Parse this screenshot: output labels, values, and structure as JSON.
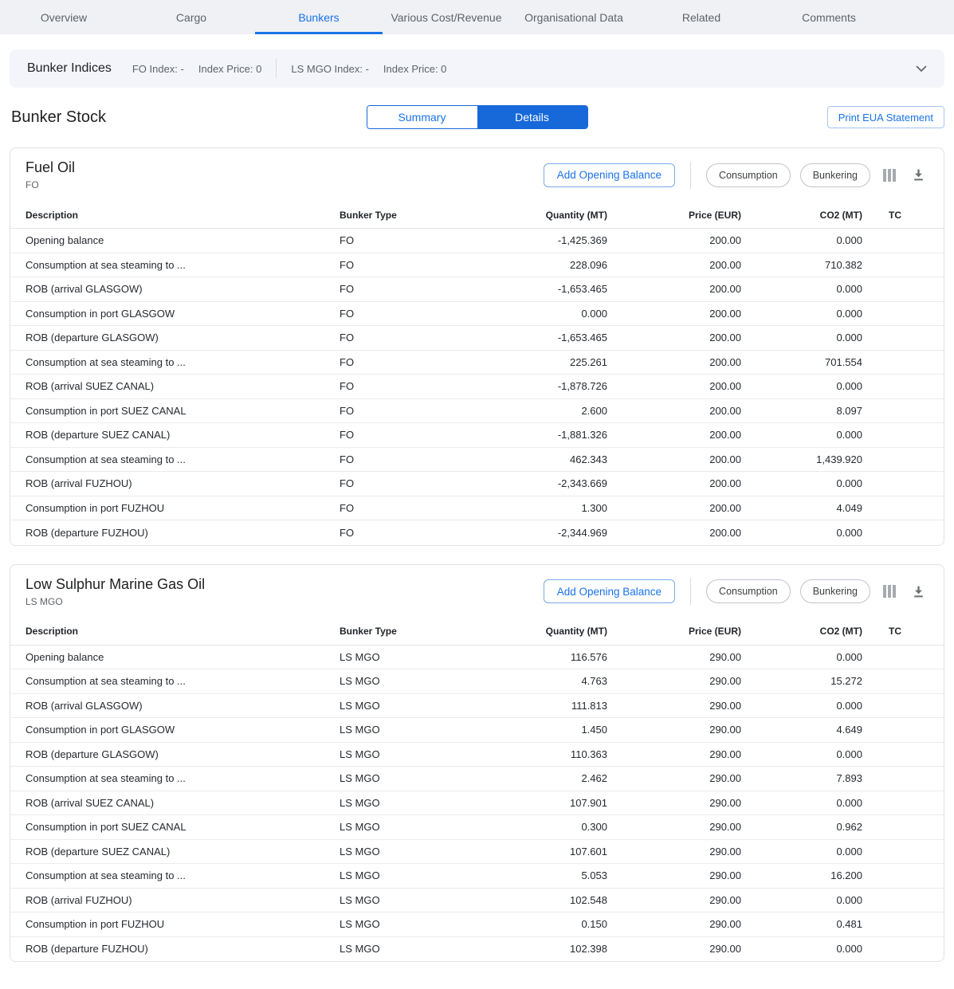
{
  "colors": {
    "accent": "#1a73e8",
    "accent_fill": "#1768d9",
    "tabbar_bg": "#eff1f4",
    "indices_bg": "#f3f5fa"
  },
  "tabs": {
    "items": [
      {
        "label": "Overview",
        "active": false
      },
      {
        "label": "Cargo",
        "active": false
      },
      {
        "label": "Bunkers",
        "active": true
      },
      {
        "label": "Various Cost/Revenue",
        "active": false
      },
      {
        "label": "Organisational Data",
        "active": false
      },
      {
        "label": "Related",
        "active": false
      },
      {
        "label": "Comments",
        "active": false
      }
    ]
  },
  "bunker_indices": {
    "title": "Bunker Indices",
    "fo_index": "FO Index: -",
    "fo_index_price": "Index Price: 0",
    "ls_mgo_index": "LS MGO Index: -",
    "ls_mgo_index_price": "Index Price: 0"
  },
  "bunker_stock": {
    "title": "Bunker Stock",
    "summary_label": "Summary",
    "details_label": "Details",
    "active_view": "Details",
    "print_eua_label": "Print EUA Statement"
  },
  "card_actions": {
    "add_opening_balance": "Add Opening Balance",
    "consumption": "Consumption",
    "bunkering": "Bunkering"
  },
  "table": {
    "columns": [
      {
        "label": "Description",
        "key": "description",
        "align": "left"
      },
      {
        "label": "Bunker Type",
        "key": "bunker_type",
        "align": "left"
      },
      {
        "label": "Quantity (MT)",
        "key": "quantity",
        "align": "right"
      },
      {
        "label": "Price (EUR)",
        "key": "price",
        "align": "right"
      },
      {
        "label": "CO2 (MT)",
        "key": "co2",
        "align": "right"
      },
      {
        "label": "TC",
        "key": "tc",
        "align": "left"
      }
    ]
  },
  "cards": [
    {
      "title": "Fuel Oil",
      "subtitle": "FO",
      "rows": [
        {
          "description": "Opening balance",
          "bunker_type": "FO",
          "quantity": "-1,425.369",
          "price": "200.00",
          "co2": "0.000",
          "tc": ""
        },
        {
          "description": "Consumption at sea steaming to ...",
          "bunker_type": "FO",
          "quantity": "228.096",
          "price": "200.00",
          "co2": "710.382",
          "tc": ""
        },
        {
          "description": "ROB (arrival GLASGOW)",
          "bunker_type": "FO",
          "quantity": "-1,653.465",
          "price": "200.00",
          "co2": "0.000",
          "tc": ""
        },
        {
          "description": "Consumption in port GLASGOW",
          "bunker_type": "FO",
          "quantity": "0.000",
          "price": "200.00",
          "co2": "0.000",
          "tc": ""
        },
        {
          "description": "ROB (departure GLASGOW)",
          "bunker_type": "FO",
          "quantity": "-1,653.465",
          "price": "200.00",
          "co2": "0.000",
          "tc": ""
        },
        {
          "description": "Consumption at sea steaming to ...",
          "bunker_type": "FO",
          "quantity": "225.261",
          "price": "200.00",
          "co2": "701.554",
          "tc": ""
        },
        {
          "description": "ROB (arrival SUEZ CANAL)",
          "bunker_type": "FO",
          "quantity": "-1,878.726",
          "price": "200.00",
          "co2": "0.000",
          "tc": ""
        },
        {
          "description": "Consumption in port SUEZ CANAL",
          "bunker_type": "FO",
          "quantity": "2.600",
          "price": "200.00",
          "co2": "8.097",
          "tc": ""
        },
        {
          "description": "ROB (departure SUEZ CANAL)",
          "bunker_type": "FO",
          "quantity": "-1,881.326",
          "price": "200.00",
          "co2": "0.000",
          "tc": ""
        },
        {
          "description": "Consumption at sea steaming to ...",
          "bunker_type": "FO",
          "quantity": "462.343",
          "price": "200.00",
          "co2": "1,439.920",
          "tc": ""
        },
        {
          "description": "ROB (arrival FUZHOU)",
          "bunker_type": "FO",
          "quantity": "-2,343.669",
          "price": "200.00",
          "co2": "0.000",
          "tc": ""
        },
        {
          "description": "Consumption in port FUZHOU",
          "bunker_type": "FO",
          "quantity": "1.300",
          "price": "200.00",
          "co2": "4.049",
          "tc": ""
        },
        {
          "description": "ROB (departure FUZHOU)",
          "bunker_type": "FO",
          "quantity": "-2,344.969",
          "price": "200.00",
          "co2": "0.000",
          "tc": ""
        }
      ]
    },
    {
      "title": "Low Sulphur Marine Gas Oil",
      "subtitle": "LS MGO",
      "rows": [
        {
          "description": "Opening balance",
          "bunker_type": "LS MGO",
          "quantity": "116.576",
          "price": "290.00",
          "co2": "0.000",
          "tc": ""
        },
        {
          "description": "Consumption at sea steaming to ...",
          "bunker_type": "LS MGO",
          "quantity": "4.763",
          "price": "290.00",
          "co2": "15.272",
          "tc": ""
        },
        {
          "description": "ROB (arrival GLASGOW)",
          "bunker_type": "LS MGO",
          "quantity": "111.813",
          "price": "290.00",
          "co2": "0.000",
          "tc": ""
        },
        {
          "description": "Consumption in port GLASGOW",
          "bunker_type": "LS MGO",
          "quantity": "1.450",
          "price": "290.00",
          "co2": "4.649",
          "tc": ""
        },
        {
          "description": "ROB (departure GLASGOW)",
          "bunker_type": "LS MGO",
          "quantity": "110.363",
          "price": "290.00",
          "co2": "0.000",
          "tc": ""
        },
        {
          "description": "Consumption at sea steaming to ...",
          "bunker_type": "LS MGO",
          "quantity": "2.462",
          "price": "290.00",
          "co2": "7.893",
          "tc": ""
        },
        {
          "description": "ROB (arrival SUEZ CANAL)",
          "bunker_type": "LS MGO",
          "quantity": "107.901",
          "price": "290.00",
          "co2": "0.000",
          "tc": ""
        },
        {
          "description": "Consumption in port SUEZ CANAL",
          "bunker_type": "LS MGO",
          "quantity": "0.300",
          "price": "290.00",
          "co2": "0.962",
          "tc": ""
        },
        {
          "description": "ROB (departure SUEZ CANAL)",
          "bunker_type": "LS MGO",
          "quantity": "107.601",
          "price": "290.00",
          "co2": "0.000",
          "tc": ""
        },
        {
          "description": "Consumption at sea steaming to ...",
          "bunker_type": "LS MGO",
          "quantity": "5.053",
          "price": "290.00",
          "co2": "16.200",
          "tc": ""
        },
        {
          "description": "ROB (arrival FUZHOU)",
          "bunker_type": "LS MGO",
          "quantity": "102.548",
          "price": "290.00",
          "co2": "0.000",
          "tc": ""
        },
        {
          "description": "Consumption in port FUZHOU",
          "bunker_type": "LS MGO",
          "quantity": "0.150",
          "price": "290.00",
          "co2": "0.481",
          "tc": ""
        },
        {
          "description": "ROB (departure FUZHOU)",
          "bunker_type": "LS MGO",
          "quantity": "102.398",
          "price": "290.00",
          "co2": "0.000",
          "tc": ""
        }
      ]
    }
  ]
}
